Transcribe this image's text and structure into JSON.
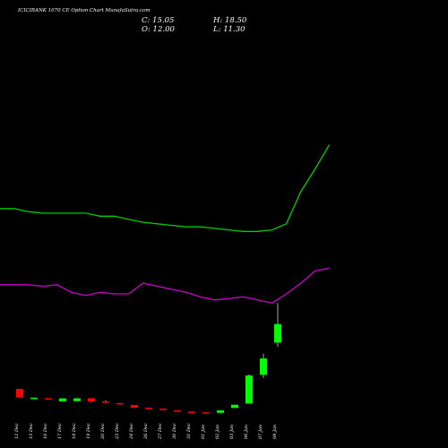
{
  "chart_data": {
    "type": "candlestick",
    "title": "ICICIBANK 1070 CE Option Chart MunafaSutra.com",
    "ohlc_labels": {
      "O": "12.00",
      "H": "18.50",
      "C": "15.05",
      "L": "11.30"
    },
    "categories": [
      "12 Dec",
      "13 Dec",
      "16 Dec",
      "17 Dec",
      "18 Dec",
      "19 Dec",
      "20 Dec",
      "23 Dec",
      "24 Dec",
      "26 Dec",
      "27 Dec",
      "30 Dec",
      "31 Dec",
      "01 Jan",
      "02 Jan",
      "03 Jan",
      "06 Jan",
      "07 Jan",
      "08 Jan"
    ],
    "candles": [
      {
        "date": "12 Dec",
        "open": 4.4,
        "high": 4.4,
        "low": 3.0,
        "close": 3.0
      },
      {
        "date": "13 Dec",
        "open": 2.96,
        "high": 3.0,
        "low": 2.9,
        "close": 2.96
      },
      {
        "date": "16 Dec",
        "open": 2.88,
        "high": 2.88,
        "low": 2.76,
        "close": 2.84
      },
      {
        "date": "17 Dec",
        "open": 2.36,
        "high": 2.88,
        "low": 2.32,
        "close": 2.84
      },
      {
        "date": "18 Dec",
        "open": 2.4,
        "high": 3.0,
        "low": 2.36,
        "close": 2.84
      },
      {
        "date": "19 Dec",
        "open": 2.88,
        "high": 2.88,
        "low": 2.2,
        "close": 2.32
      },
      {
        "date": "20 Dec",
        "open": 2.36,
        "high": 2.56,
        "low": 2.16,
        "close": 2.24
      },
      {
        "date": "23 Dec",
        "open": 2.08,
        "high": 2.08,
        "low": 1.84,
        "close": 1.88
      },
      {
        "date": "24 Dec",
        "open": 1.76,
        "high": 1.76,
        "low": 1.28,
        "close": 1.32
      },
      {
        "date": "26 Dec",
        "open": 1.32,
        "high": 1.32,
        "low": 1.16,
        "close": 1.2
      },
      {
        "date": "27 Dec",
        "open": 1.16,
        "high": 1.16,
        "low": 0.92,
        "close": 0.96
      },
      {
        "date": "30 Dec",
        "open": 0.88,
        "high": 0.88,
        "low": 0.8,
        "close": 0.84
      },
      {
        "date": "31 Dec",
        "open": 0.68,
        "high": 0.68,
        "low": 0.56,
        "close": 0.6
      },
      {
        "date": "01 Jan",
        "open": 0.56,
        "high": 0.56,
        "low": 0.36,
        "close": 0.4
      },
      {
        "date": "02 Jan",
        "open": 0.48,
        "high": 0.92,
        "low": 0.48,
        "close": 0.88
      },
      {
        "date": "03 Jan",
        "open": 1.28,
        "high": 1.84,
        "low": 1.28,
        "close": 1.8
      },
      {
        "date": "06 Jan",
        "open": 2.0,
        "high": 6.8,
        "low": 2.0,
        "close": 6.6
      },
      {
        "date": "07 Jan",
        "open": 6.72,
        "high": 10.2,
        "low": 6.2,
        "close": 9.4
      },
      {
        "date": "08 Jan",
        "open": 12.0,
        "high": 18.5,
        "low": 11.3,
        "close": 15.05
      }
    ],
    "overlay_series": [
      {
        "color": "#00cc00",
        "points": [
          [
            0,
            34.0
          ],
          [
            1,
            34.0
          ],
          [
            2,
            33.5
          ],
          [
            3,
            33.25
          ],
          [
            4,
            33.25
          ],
          [
            5,
            33.25
          ],
          [
            6,
            33.25
          ],
          [
            7,
            32.75
          ],
          [
            8,
            32.75
          ],
          [
            9,
            32.25
          ],
          [
            10,
            31.75
          ],
          [
            11,
            31.5
          ],
          [
            12,
            31.25
          ],
          [
            13,
            31.0
          ],
          [
            14,
            31.0
          ],
          [
            15,
            30.75
          ],
          [
            16,
            30.5
          ],
          [
            17,
            30.25
          ],
          [
            18,
            30.25
          ],
          [
            19,
            30.5
          ],
          [
            20,
            31.5
          ],
          [
            21,
            36.75
          ],
          [
            22,
            40.5
          ],
          [
            23,
            44.5
          ]
        ]
      },
      {
        "color": "#cc00cc",
        "points": [
          [
            0,
            21.5
          ],
          [
            1,
            21.5
          ],
          [
            2,
            21.5
          ],
          [
            3,
            21.25
          ],
          [
            4,
            21.5
          ],
          [
            5,
            20.25
          ],
          [
            6,
            19.75
          ],
          [
            7,
            20.25
          ],
          [
            8,
            20.0
          ],
          [
            9,
            20.0
          ],
          [
            10,
            21.75
          ],
          [
            11,
            21.25
          ],
          [
            12,
            20.75
          ],
          [
            13,
            20.25
          ],
          [
            14,
            19.5
          ],
          [
            15,
            19.0
          ],
          [
            16,
            19.25
          ],
          [
            17,
            19.5
          ],
          [
            18,
            19.0
          ],
          [
            19,
            18.5
          ],
          [
            20,
            20.0
          ],
          [
            21,
            21.75
          ],
          [
            22,
            23.75
          ],
          [
            23,
            24.25
          ]
        ]
      }
    ],
    "up_color": "#00ff00",
    "down_color": "#ff0000",
    "background": "#000000",
    "ylim": [
      0,
      55
    ],
    "grid": false
  }
}
